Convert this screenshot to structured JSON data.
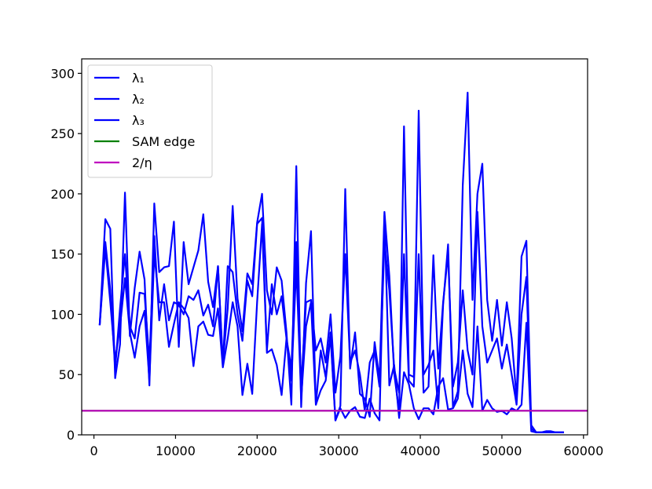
{
  "chart_data": {
    "type": "line",
    "title": "",
    "xlabel": "",
    "ylabel": "",
    "xlim": [
      -1500,
      60500
    ],
    "ylim": [
      0,
      312
    ],
    "grid": false,
    "legend_position": "top-left",
    "x_ticks": [
      0,
      10000,
      20000,
      30000,
      40000,
      50000,
      60000
    ],
    "x_tick_labels": [
      "0",
      "10000",
      "20000",
      "30000",
      "40000",
      "50000",
      "60000"
    ],
    "y_ticks": [
      0,
      50,
      100,
      150,
      200,
      250,
      300
    ],
    "y_tick_labels": [
      "0",
      "50",
      "100",
      "150",
      "200",
      "250",
      "300"
    ],
    "series": [
      {
        "name": "λ₁",
        "color": "#0000ff",
        "x": [
          700,
          1400,
          2000,
          2600,
          3200,
          3800,
          4400,
          5000,
          5600,
          6200,
          6800,
          7400,
          8000,
          8600,
          9200,
          9800,
          10400,
          11000,
          11600,
          12200,
          12800,
          13400,
          14000,
          14600,
          15200,
          15800,
          16400,
          17000,
          17600,
          18200,
          18800,
          19400,
          20000,
          20600,
          21200,
          21800,
          22400,
          23000,
          23600,
          24200,
          24800,
          25400,
          26000,
          26600,
          27200,
          27800,
          28400,
          29000,
          29600,
          30200,
          30800,
          31400,
          32000,
          32600,
          33200,
          33800,
          34400,
          35000,
          35600,
          36200,
          36800,
          37400,
          38000,
          38600,
          39200,
          39800,
          40400,
          41000,
          41600,
          42200,
          42800,
          43400,
          44000,
          44600,
          45200,
          45800,
          46400,
          47000,
          47600,
          48200,
          48800,
          49400,
          50000,
          50600,
          51200,
          51800,
          52400,
          53000,
          53600,
          54200,
          54800,
          55400,
          56000,
          56600,
          57200,
          57600
        ],
        "values": [
          91,
          179,
          171,
          47,
          75,
          201,
          82,
          122,
          152,
          129,
          41,
          192,
          135,
          139,
          140,
          177,
          73,
          160,
          125,
          139,
          153,
          183,
          127,
          106,
          140,
          60,
          105,
          190,
          113,
          86,
          134,
          125,
          176,
          200,
          120,
          100,
          139,
          128,
          85,
          25,
          223,
          23,
          126,
          169,
          25,
          37,
          45,
          82,
          12,
          24,
          204,
          55,
          85,
          34,
          30,
          15,
          77,
          46,
          185,
          132,
          51,
          19,
          256,
          50,
          48,
          269,
          50,
          58,
          70,
          22,
          108,
          158,
          23,
          36,
          207,
          284,
          112,
          200,
          225,
          112,
          78,
          112,
          74,
          110,
          80,
          30,
          148,
          161,
          8,
          2,
          2,
          3,
          3,
          2,
          2,
          2
        ]
      },
      {
        "name": "λ₂",
        "color": "#0000ff",
        "x": [
          700,
          1400,
          2000,
          2600,
          3200,
          3800,
          4400,
          5000,
          5600,
          6200,
          6800,
          7400,
          8000,
          8600,
          9200,
          9800,
          10400,
          11000,
          11600,
          12200,
          12800,
          13400,
          14000,
          14600,
          15200,
          15800,
          16400,
          17000,
          17600,
          18200,
          18800,
          19400,
          20000,
          20600,
          21200,
          21800,
          22400,
          23000,
          23600,
          24200,
          24800,
          25400,
          26000,
          26600,
          27200,
          27800,
          28400,
          29000,
          29600,
          30200,
          30800,
          31400,
          32000,
          32600,
          33200,
          33800,
          34400,
          35000,
          35600,
          36200,
          36800,
          37400,
          38000,
          38600,
          39200,
          39800,
          40400,
          41000,
          41600,
          42200,
          42800,
          43400,
          44000,
          44600,
          45200,
          45800,
          46400,
          47000,
          47600,
          48200,
          48800,
          49400,
          50000,
          50600,
          51200,
          51800,
          52400,
          53000,
          53600,
          54200,
          54800,
          55400,
          56000,
          56600,
          57200,
          57600
        ],
        "values": [
          91,
          160,
          120,
          55,
          105,
          150,
          90,
          80,
          118,
          117,
          60,
          165,
          95,
          125,
          95,
          110,
          108,
          100,
          115,
          112,
          120,
          99,
          108,
          90,
          140,
          58,
          140,
          135,
          100,
          78,
          128,
          115,
          175,
          180,
          70,
          125,
          100,
          115,
          80,
          55,
          160,
          40,
          110,
          112,
          70,
          80,
          60,
          100,
          35,
          65,
          150,
          60,
          70,
          50,
          20,
          60,
          70,
          40,
          160,
          120,
          55,
          35,
          150,
          45,
          40,
          150,
          35,
          40,
          149,
          55,
          110,
          150,
          40,
          60,
          120,
          70,
          50,
          185,
          90,
          60,
          70,
          80,
          55,
          75,
          50,
          25,
          100,
          131,
          5,
          2,
          2,
          2,
          2,
          2,
          2,
          2
        ]
      },
      {
        "name": "λ₃",
        "color": "#0000ff",
        "x": [
          700,
          1400,
          2000,
          2600,
          3200,
          3800,
          4400,
          5000,
          5600,
          6200,
          6800,
          7400,
          8000,
          8600,
          9200,
          9800,
          10400,
          11000,
          11600,
          12200,
          12800,
          13400,
          14000,
          14600,
          15200,
          15800,
          16400,
          17000,
          17600,
          18200,
          18800,
          19400,
          20000,
          20600,
          21200,
          21800,
          22400,
          23000,
          23600,
          24200,
          24800,
          25400,
          26000,
          26600,
          27200,
          27800,
          28400,
          29000,
          29600,
          30200,
          30800,
          31400,
          32000,
          32600,
          33200,
          33800,
          34400,
          35000,
          35600,
          36200,
          36800,
          37400,
          38000,
          38600,
          39200,
          39800,
          40400,
          41000,
          41600,
          42200,
          42800,
          43400,
          44000,
          44600,
          45200,
          45800,
          46400,
          47000,
          47600,
          48200,
          48800,
          49400,
          50000,
          50600,
          51200,
          51800,
          52400,
          53000,
          53600,
          54200,
          54800,
          55400,
          56000,
          56600,
          57200,
          57600
        ],
        "values": [
          91,
          155,
          110,
          62,
          90,
          130,
          85,
          64,
          90,
          103,
          45,
          150,
          110,
          110,
          73,
          92,
          110,
          105,
          97,
          57,
          90,
          94,
          83,
          82,
          105,
          56,
          80,
          110,
          90,
          33,
          59,
          34,
          110,
          175,
          68,
          71,
          58,
          33,
          80,
          45,
          140,
          30,
          90,
          110,
          25,
          70,
          48,
          85,
          12,
          22,
          14,
          20,
          23,
          15,
          14,
          30,
          18,
          12,
          182,
          41,
          58,
          14,
          52,
          42,
          22,
          13,
          22,
          22,
          17,
          40,
          47,
          21,
          22,
          30,
          70,
          34,
          23,
          90,
          20,
          29,
          22,
          19,
          20,
          17,
          22,
          20,
          25,
          93,
          3,
          2,
          2,
          2,
          2,
          2,
          2,
          2
        ]
      },
      {
        "name": "SAM edge",
        "color": "#008000",
        "x": [
          -1500,
          60500
        ],
        "values": [
          20,
          20
        ]
      },
      {
        "name": "2/η",
        "color": "#bf00bf",
        "x": [
          -1500,
          60500
        ],
        "values": [
          20,
          20
        ]
      }
    ]
  }
}
